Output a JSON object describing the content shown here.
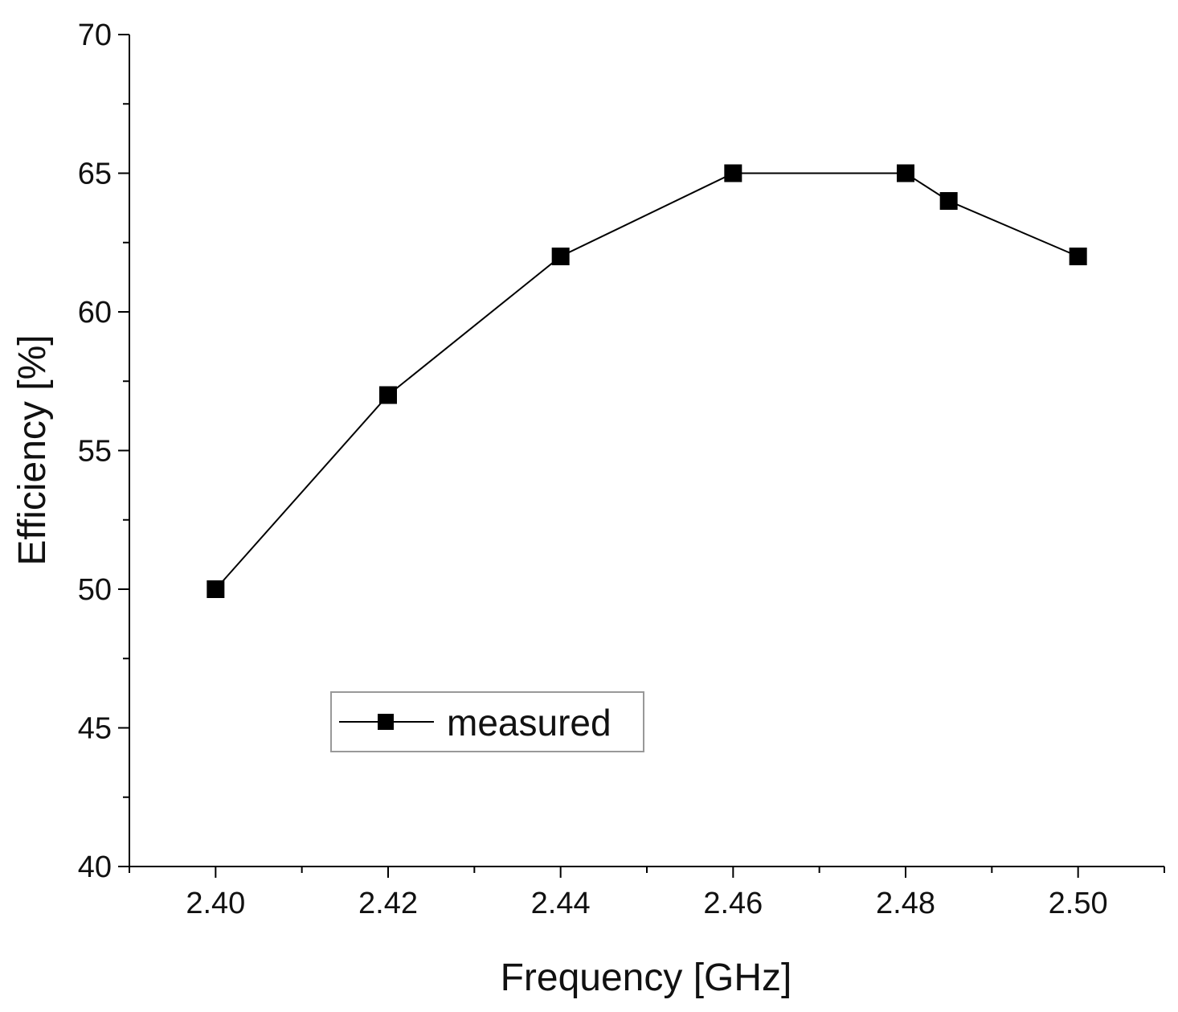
{
  "chart_data": {
    "type": "line",
    "title": "",
    "xlabel": "Frequency [GHz]",
    "ylabel": "Efficiency [%]",
    "xlim": [
      2.39,
      2.51
    ],
    "ylim": [
      40,
      70
    ],
    "x_ticks": [
      "2.40",
      "2.42",
      "2.44",
      "2.46",
      "2.48",
      "2.50"
    ],
    "y_ticks": [
      "40",
      "45",
      "50",
      "55",
      "60",
      "65",
      "70"
    ],
    "grid": false,
    "legend_position": "lower-left",
    "series": [
      {
        "name": "measured",
        "color": "#000000",
        "marker": "square",
        "x": [
          2.4,
          2.42,
          2.44,
          2.46,
          2.48,
          2.485,
          2.5
        ],
        "y": [
          50,
          57,
          62,
          65,
          65,
          64,
          62
        ]
      }
    ]
  }
}
